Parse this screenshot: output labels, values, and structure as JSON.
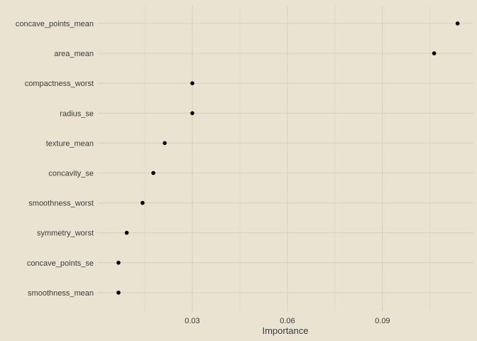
{
  "chart_data": {
    "type": "scatter",
    "title": "",
    "xlabel": "Importance",
    "ylabel": "",
    "xlim": [
      0.0,
      0.1187
    ],
    "x_ticks": [
      {
        "value": 0.03,
        "label": "0.03"
      },
      {
        "value": 0.06,
        "label": "0.06"
      },
      {
        "value": 0.09,
        "label": "0.09"
      }
    ],
    "x_minor_ticks": [
      0.015,
      0.045,
      0.075,
      0.105
    ],
    "grid": true,
    "legend": "none",
    "categories": [
      "concave_points_mean",
      "area_mean",
      "compactness_worst",
      "radius_se",
      "texture_mean",
      "concavity_se",
      "smoothness_worst",
      "symmetry_worst",
      "concave_points_se",
      "smoothness_mean"
    ],
    "values": [
      0.1137,
      0.1063,
      0.03,
      0.03,
      0.0213,
      0.0177,
      0.0143,
      0.0093,
      0.0067,
      0.0067
    ],
    "colors": {
      "background": "#ebe3d2",
      "grid_major": "#d8cfbd",
      "grid_minor": "#e1d9c8",
      "point": "#000000",
      "text": "#3a3a3a"
    }
  }
}
